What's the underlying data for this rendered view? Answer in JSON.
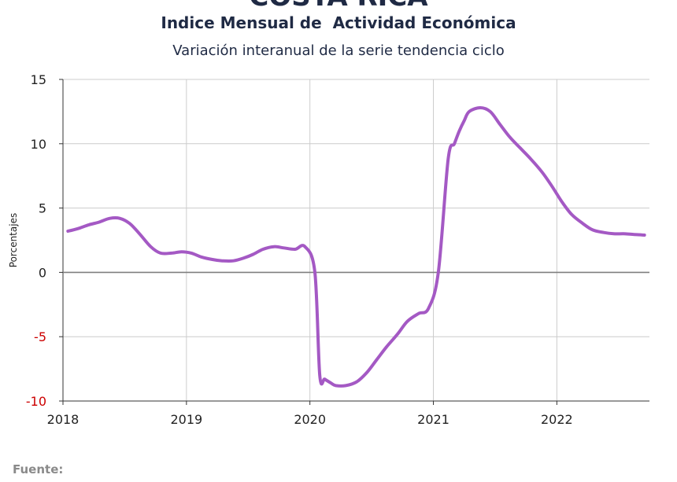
{
  "header": {
    "top_title": "COSTA RICA",
    "title": "Indice Mensual de  Actividad Económica",
    "subtitle": "Variación interanual de la serie tendencia ciclo"
  },
  "footer": {
    "source_label": "Fuente:"
  },
  "chart_data": {
    "type": "line",
    "ylabel": "Porcentajes",
    "ylim": [
      -10,
      15
    ],
    "yticks": [
      15,
      10,
      5,
      0,
      -5,
      -10
    ],
    "xlim": [
      2018.0,
      2022.75
    ],
    "xticks": [
      2018,
      2019,
      2020,
      2021,
      2022
    ],
    "grid": true,
    "colors": {
      "line": "#a459c4",
      "zero_line": "#7f7f7f",
      "negative_tick": "#cc0000",
      "grid": "#cccccc"
    },
    "series": [
      {
        "x": [
          2018.04,
          2018.12,
          2018.21,
          2018.29,
          2018.38,
          2018.46,
          2018.54,
          2018.62,
          2018.71,
          2018.79,
          2018.88,
          2018.96,
          2019.04,
          2019.12,
          2019.21,
          2019.29,
          2019.38,
          2019.46,
          2019.54,
          2019.62,
          2019.71,
          2019.79,
          2019.88,
          2019.96,
          2020.04,
          2020.08,
          2020.12,
          2020.17,
          2020.21,
          2020.29,
          2020.38,
          2020.46,
          2020.54,
          2020.62,
          2020.71,
          2020.79,
          2020.88,
          2020.96,
          2021.04,
          2021.12,
          2021.17,
          2021.21,
          2021.25,
          2021.29,
          2021.38,
          2021.46,
          2021.54,
          2021.62,
          2021.71,
          2021.79,
          2021.88,
          2021.96,
          2022.04,
          2022.12,
          2022.21,
          2022.29,
          2022.38,
          2022.46,
          2022.54,
          2022.62,
          2022.71
        ],
        "y": [
          3.2,
          3.4,
          3.7,
          3.9,
          4.2,
          4.2,
          3.8,
          3.0,
          2.0,
          1.5,
          1.5,
          1.6,
          1.5,
          1.2,
          1.0,
          0.9,
          0.9,
          1.1,
          1.4,
          1.8,
          2.0,
          1.9,
          1.8,
          2.0,
          0.0,
          -8.0,
          -8.3,
          -8.6,
          -8.8,
          -8.8,
          -8.5,
          -7.8,
          -6.8,
          -5.8,
          -4.8,
          -3.8,
          -3.2,
          -2.8,
          0.0,
          8.8,
          10.0,
          11.0,
          11.8,
          12.5,
          12.8,
          12.5,
          11.5,
          10.5,
          9.6,
          8.8,
          7.8,
          6.7,
          5.5,
          4.5,
          3.8,
          3.3,
          3.1,
          3.0,
          3.0,
          2.95,
          2.9
        ]
      }
    ]
  }
}
